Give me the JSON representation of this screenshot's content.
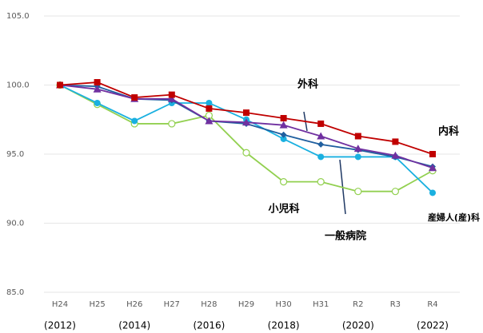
{
  "chart_data": {
    "type": "line",
    "categories": [
      "H24",
      "H25",
      "H26",
      "H27",
      "H28",
      "H29",
      "H30",
      "H31",
      "R2",
      "R3",
      "R4"
    ],
    "secondary_categories": [
      "(2012)",
      null,
      "(2014)",
      null,
      "(2016)",
      null,
      "(2018)",
      null,
      "(2020)",
      null,
      "(2022)"
    ],
    "ylim": [
      85,
      105
    ],
    "yticks": [
      {
        "value": 85,
        "label": "85.0"
      },
      {
        "value": 90,
        "label": "90.0"
      },
      {
        "value": 95,
        "label": "95.0"
      },
      {
        "value": 100,
        "label": "100.0"
      },
      {
        "value": 105,
        "label": "105.0"
      }
    ],
    "grid": true,
    "series": [
      {
        "name": "内科",
        "color": "#c00000",
        "marker": "square",
        "values": [
          100,
          100.2,
          99.1,
          99.3,
          98.3,
          98.0,
          97.6,
          97.2,
          96.3,
          95.9,
          95.0
        ]
      },
      {
        "name": "外科",
        "color": "#7030a0",
        "marker": "triangle",
        "values": [
          100,
          99.7,
          99.0,
          99.0,
          97.4,
          97.3,
          97.1,
          96.3,
          95.4,
          94.9,
          94.0
        ]
      },
      {
        "name": "小児科",
        "color": "#92d050",
        "marker": "hollow-circle",
        "values": [
          100,
          98.6,
          97.2,
          97.2,
          97.8,
          95.1,
          93.0,
          93.0,
          92.3,
          92.3,
          93.8
        ]
      },
      {
        "name": "一般病院",
        "color": "#1f5f9f",
        "marker": "diamond",
        "values": [
          100,
          99.9,
          99.0,
          98.9,
          97.4,
          97.2,
          96.4,
          95.7,
          95.3,
          94.8,
          94.1
        ]
      },
      {
        "name": "産婦人(産)科",
        "color": "#1ab0e0",
        "marker": "circle",
        "values": [
          100,
          98.7,
          97.4,
          98.7,
          98.7,
          97.5,
          96.1,
          94.8,
          94.8,
          94.8,
          92.2
        ]
      }
    ]
  }
}
